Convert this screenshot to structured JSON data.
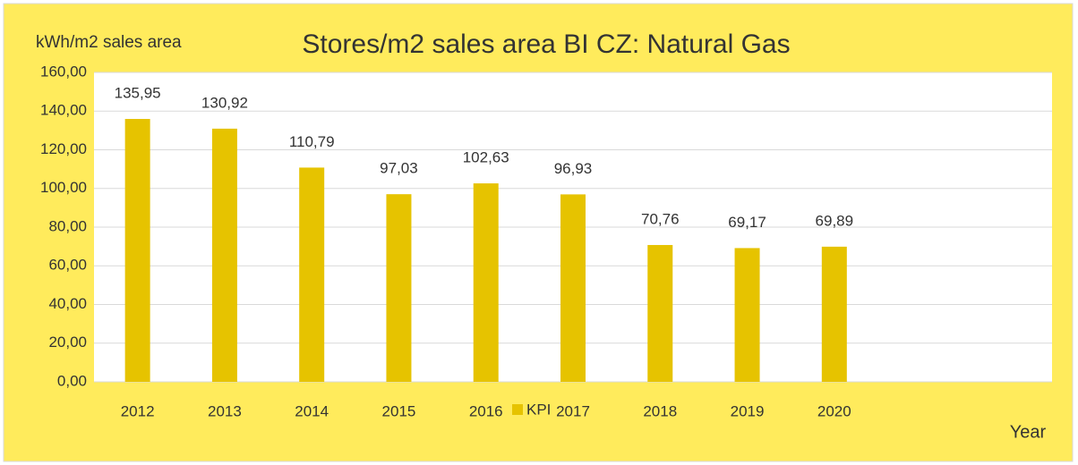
{
  "chart_data": {
    "type": "bar",
    "title": "Stores/m2 sales area BI CZ: Natural Gas",
    "y_axis_label": "kWh/m2 sales area",
    "x_axis_label": "Year",
    "categories": [
      "2012",
      "2013",
      "2014",
      "2015",
      "2016",
      "2017",
      "2018",
      "2019",
      "2020",
      null,
      null
    ],
    "series": [
      {
        "name": "KPI",
        "color": "#e6c300",
        "values": [
          135.95,
          130.92,
          110.79,
          97.03,
          102.63,
          96.93,
          70.76,
          69.17,
          69.89,
          null,
          null
        ],
        "value_labels": [
          "135,95",
          "130,92",
          "110,79",
          "97,03",
          "102,63",
          "96,93",
          "70,76",
          "69,17",
          "69,89",
          null,
          null
        ]
      }
    ],
    "ylim": [
      0,
      160
    ],
    "yticks": [
      {
        "value": 0,
        "label": "0,00"
      },
      {
        "value": 20,
        "label": "20,00"
      },
      {
        "value": 40,
        "label": "40,00"
      },
      {
        "value": 60,
        "label": "60,00"
      },
      {
        "value": 80,
        "label": "80,00"
      },
      {
        "value": 100,
        "label": "100,00"
      },
      {
        "value": 120,
        "label": "120,00"
      },
      {
        "value": 140,
        "label": "140,00"
      },
      {
        "value": 160,
        "label": "160,00"
      }
    ],
    "grid": true,
    "legend": "bottom"
  }
}
